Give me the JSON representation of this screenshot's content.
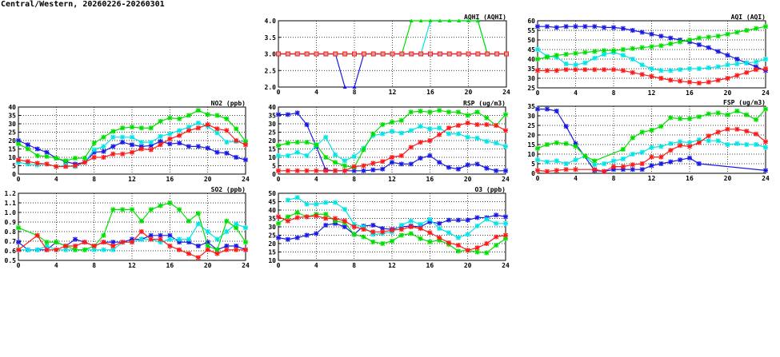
{
  "page": {
    "title": "Central/Western, 20260226-20260301"
  },
  "colors": {
    "blue": "#1a1ae6",
    "cyan": "#00e5e5",
    "green": "#00e000",
    "red": "#ff1a1a"
  },
  "chart_data": [
    {
      "id": "aqhi",
      "type": "line",
      "title": "AQHI (AQHI)",
      "xlim": [
        0,
        24
      ],
      "xticks": [
        0,
        4,
        8,
        12,
        16,
        20,
        24
      ],
      "ylim": [
        2.0,
        4.0
      ],
      "ystep": 0.5,
      "ydecimals": 1,
      "grid": true,
      "marker": "triangle",
      "series": [
        {
          "color": "blue",
          "values": [
            3,
            3,
            3,
            3,
            3,
            3,
            3,
            2,
            2,
            3,
            3,
            3,
            3,
            3,
            3,
            3,
            3,
            3,
            3,
            3,
            3,
            3,
            3,
            3,
            3
          ]
        },
        {
          "color": "cyan",
          "values": [
            3,
            3,
            3,
            3,
            3,
            3,
            3,
            3,
            3,
            3,
            3,
            3,
            3,
            3,
            3,
            3,
            4,
            4,
            4,
            4,
            4,
            4,
            3,
            3,
            3
          ]
        },
        {
          "color": "green",
          "values": [
            3,
            3,
            3,
            3,
            3,
            3,
            3,
            3,
            3,
            3,
            3,
            3,
            3,
            3,
            4,
            4,
            4,
            4,
            4,
            4,
            4,
            4,
            3,
            3,
            3
          ]
        },
        {
          "color": "red",
          "values": [
            3,
            3,
            3,
            3,
            3,
            3,
            3,
            3,
            3,
            3,
            3,
            3,
            3,
            3,
            3,
            3,
            3,
            3,
            3,
            3,
            3,
            3,
            3,
            3,
            3
          ]
        }
      ]
    },
    {
      "id": "aqi",
      "type": "line",
      "title": "AQI (AQI)",
      "xlim": [
        0,
        24
      ],
      "xticks": [
        0,
        4,
        8,
        12,
        16,
        20,
        24
      ],
      "ylim": [
        25,
        60
      ],
      "ystep": 5,
      "ydecimals": 0,
      "grid": true,
      "marker": "star",
      "series": [
        {
          "color": "blue",
          "values": [
            57,
            57,
            56.5,
            57,
            57,
            57,
            57,
            56.5,
            56.5,
            56,
            55,
            54,
            53,
            52,
            51,
            50,
            49,
            47.5,
            46,
            44,
            42,
            40,
            38,
            36,
            34
          ]
        },
        {
          "color": "cyan",
          "values": [
            45,
            41.5,
            41,
            37.5,
            37,
            38,
            40.5,
            42.5,
            43.5,
            42,
            40,
            37,
            35,
            34,
            34,
            34.5,
            35,
            35,
            35.5,
            36,
            37,
            37.5,
            38,
            38.5,
            40
          ]
        },
        {
          "color": "green",
          "values": [
            40,
            41,
            42,
            42.5,
            43,
            43.5,
            44,
            44.5,
            44.5,
            45,
            45.5,
            46,
            46.5,
            47,
            48,
            49,
            50,
            51,
            51.5,
            52,
            53,
            54,
            55,
            56,
            57
          ]
        },
        {
          "color": "red",
          "values": [
            34,
            34,
            34,
            34.5,
            34.5,
            34.5,
            34.5,
            34.5,
            34.5,
            34,
            33,
            32,
            31,
            30,
            29,
            28.5,
            28,
            27.5,
            28,
            29,
            30,
            31.5,
            33,
            34.5,
            35
          ]
        }
      ]
    },
    {
      "id": "no2",
      "type": "line",
      "title": "NO2 (ppb)",
      "xlim": [
        0,
        24
      ],
      "xticks": [
        0,
        4,
        8,
        12,
        16,
        20,
        24
      ],
      "ylim": [
        0,
        40
      ],
      "ystep": 5,
      "ydecimals": 0,
      "grid": true,
      "marker": "star",
      "series": [
        {
          "color": "blue",
          "values": [
            20,
            17.5,
            15,
            13,
            9.5,
            7.5,
            6,
            7,
            13,
            13.5,
            16.5,
            19,
            17.5,
            16.5,
            17,
            19.5,
            18,
            18.5,
            16.5,
            16.5,
            15.5,
            13,
            12.5,
            10,
            8.5
          ]
        },
        {
          "color": "cyan",
          "values": [
            7,
            6,
            5.5,
            6,
            4.5,
            5,
            4.5,
            7,
            14.5,
            16.5,
            22,
            22,
            22,
            19,
            19,
            22.5,
            24,
            26,
            28,
            30.5,
            28.5,
            24.5,
            19,
            19.5,
            19.5
          ]
        },
        {
          "color": "green",
          "values": [
            18,
            15,
            11,
            10.5,
            9.5,
            8,
            9.5,
            9.5,
            18.5,
            22,
            25.5,
            27.5,
            28,
            27.5,
            27.5,
            31.5,
            33.5,
            33,
            35,
            38,
            35.5,
            35,
            33,
            27,
            19.5
          ]
        },
        {
          "color": "red",
          "values": [
            8.5,
            7.5,
            6.5,
            6,
            4.5,
            4.5,
            5,
            7,
            10,
            10,
            12,
            12,
            13,
            15,
            14.5,
            17.5,
            21,
            23,
            26,
            27.5,
            29.5,
            27,
            26,
            20,
            17.5
          ]
        }
      ]
    },
    {
      "id": "rsp",
      "type": "line",
      "title": "RSP (ug/m3)",
      "xlim": [
        0,
        24
      ],
      "xticks": [
        0,
        4,
        8,
        12,
        16,
        20,
        24
      ],
      "ylim": [
        0,
        40
      ],
      "ystep": 5,
      "ydecimals": 0,
      "grid": true,
      "marker": "star",
      "series": [
        {
          "color": "blue",
          "values": [
            35.5,
            35.5,
            36.5,
            29.5,
            16.5,
            2.5,
            2,
            2,
            2,
            2,
            2.5,
            3,
            7,
            6,
            6,
            9.5,
            11,
            7,
            4,
            3,
            5.5,
            6,
            3.5,
            2,
            2
          ]
        },
        {
          "color": "cyan",
          "values": [
            11,
            11,
            13,
            11,
            17,
            22,
            11.5,
            8,
            10.5,
            15.5,
            23,
            24,
            25.5,
            24.5,
            26,
            28.5,
            27,
            27.5,
            24,
            24,
            22,
            21.5,
            19.5,
            18.5,
            16.5
          ]
        },
        {
          "color": "green",
          "values": [
            17,
            18.5,
            19,
            19,
            17.5,
            10,
            7,
            5,
            4,
            14.5,
            24,
            29.5,
            31,
            32,
            37,
            37.5,
            37,
            38,
            37,
            37,
            35,
            37,
            33.5,
            29,
            35.5
          ]
        },
        {
          "color": "red",
          "values": [
            2,
            2,
            2,
            2,
            2,
            2,
            2,
            2,
            4.5,
            5,
            6.5,
            7.5,
            10,
            11,
            16,
            19,
            20,
            23.5,
            27.5,
            29,
            30.5,
            29.5,
            29.5,
            29,
            26
          ]
        }
      ]
    },
    {
      "id": "fsp",
      "type": "line",
      "title": "FSP (ug/m3)",
      "xlim": [
        0,
        24
      ],
      "xticks": [
        0,
        4,
        8,
        12,
        16,
        20,
        24
      ],
      "ylim": [
        0,
        35
      ],
      "ystep": 5,
      "ydecimals": 0,
      "grid": true,
      "marker": "star",
      "series": [
        {
          "color": "blue",
          "values": [
            33.5,
            33.5,
            32.5,
            24.5,
            15.5,
            null,
            1.5,
            1,
            2,
            2,
            2,
            2,
            4,
            5,
            6,
            7,
            8,
            5,
            null,
            null,
            null,
            null,
            null,
            null,
            1.5
          ]
        },
        {
          "color": "cyan",
          "values": [
            7,
            6,
            6.5,
            5,
            7,
            9,
            4.5,
            5,
            6.5,
            7.5,
            10,
            11,
            13.5,
            14,
            15.5,
            16.5,
            16,
            17.5,
            17,
            17,
            15,
            15.5,
            15,
            15,
            13.5
          ]
        },
        {
          "color": "green",
          "values": [
            13,
            15,
            16,
            15.5,
            14,
            9,
            6.5,
            null,
            null,
            12.5,
            18.5,
            21.5,
            22.5,
            24.5,
            29,
            28.5,
            28.5,
            29.5,
            31,
            31.5,
            30.5,
            32.5,
            30.5,
            28,
            33.5
          ]
        },
        {
          "color": "red",
          "values": [
            1.5,
            1,
            1.5,
            2,
            2,
            null,
            2,
            1,
            3.5,
            3.5,
            4.5,
            5,
            8.5,
            8.5,
            12,
            14.5,
            14,
            16,
            19.5,
            21.5,
            23,
            23,
            22,
            20.5,
            16.5
          ]
        }
      ]
    },
    {
      "id": "so2",
      "type": "line",
      "title": "SO2 (ppb)",
      "xlim": [
        0,
        24
      ],
      "xticks": [
        0,
        4,
        8,
        12,
        16,
        20,
        24
      ],
      "ylim": [
        0.5,
        1.2
      ],
      "ystep": 0.1,
      "ydecimals": 1,
      "grid": true,
      "marker": "star",
      "series": [
        {
          "color": "blue",
          "values": [
            0.69,
            0.61,
            0.61,
            0.61,
            0.69,
            0.65,
            0.72,
            0.69,
            0.65,
            0.69,
            0.69,
            0.69,
            0.72,
            0.72,
            0.76,
            0.76,
            0.76,
            0.69,
            0.69,
            0.65,
            0.69,
            0.61,
            0.65,
            0.65,
            0.61
          ]
        },
        {
          "color": "cyan",
          "values": [
            0.61,
            0.61,
            0.61,
            0.65,
            0.61,
            0.61,
            0.61,
            0.61,
            0.61,
            0.61,
            0.61,
            0.69,
            0.69,
            0.72,
            0.72,
            0.69,
            0.72,
            0.72,
            0.72,
            0.88,
            0.8,
            0.72,
            0.8,
            0.88,
            0.84
          ]
        },
        {
          "color": "green",
          "values": [
            0.84,
            null,
            0.76,
            0.69,
            0.69,
            0.65,
            0.61,
            0.61,
            0.65,
            0.76,
            1.03,
            1.03,
            1.03,
            0.91,
            1.03,
            1.07,
            1.1,
            1.03,
            0.91,
            0.99,
            0.65,
            0.61,
            0.91,
            0.84,
            0.69
          ]
        },
        {
          "color": "red",
          "values": [
            0.61,
            null,
            0.76,
            0.61,
            0.61,
            0.65,
            0.65,
            0.69,
            0.65,
            0.69,
            0.65,
            0.69,
            0.69,
            0.8,
            0.72,
            0.72,
            0.65,
            0.61,
            0.57,
            0.53,
            0.61,
            0.57,
            0.61,
            0.61,
            0.61
          ]
        }
      ]
    },
    {
      "id": "o3",
      "type": "line",
      "title": "O3 (ppb)",
      "xlim": [
        0,
        24
      ],
      "xticks": [
        0,
        4,
        8,
        12,
        16,
        20,
        24
      ],
      "ylim": [
        10,
        50
      ],
      "ystep": 5,
      "ydecimals": 0,
      "grid": true,
      "marker": "star",
      "series": [
        {
          "color": "blue",
          "values": [
            23.5,
            22.5,
            23.5,
            25,
            26,
            31,
            32,
            30,
            25.5,
            30.5,
            31,
            29,
            28.5,
            30,
            30.5,
            30,
            33,
            32,
            34,
            34,
            34,
            35.5,
            35.5,
            37,
            36
          ]
        },
        {
          "color": "cyan",
          "values": [
            null,
            46,
            47.5,
            43.5,
            43.5,
            44.5,
            44.5,
            40.5,
            31.5,
            30,
            25.5,
            26,
            27,
            31,
            33.5,
            31.5,
            34.5,
            29,
            26.5,
            23.5,
            25.5,
            30.5,
            34.5,
            32,
            32
          ]
        },
        {
          "color": "green",
          "values": [
            32,
            36,
            38.5,
            36,
            37.5,
            37.5,
            33.5,
            32.5,
            25.5,
            24,
            21,
            20,
            21.5,
            25,
            26,
            23,
            21,
            22,
            19.5,
            15.5,
            16,
            15,
            14.5,
            19,
            23
          ]
        },
        {
          "color": "red",
          "values": [
            36,
            33.5,
            35.5,
            36,
            36.5,
            35,
            35,
            33.5,
            30,
            28.5,
            27,
            27,
            28,
            28.5,
            30,
            29,
            26.5,
            23.5,
            20.5,
            19,
            16,
            17.5,
            20,
            24,
            25
          ]
        }
      ]
    }
  ]
}
